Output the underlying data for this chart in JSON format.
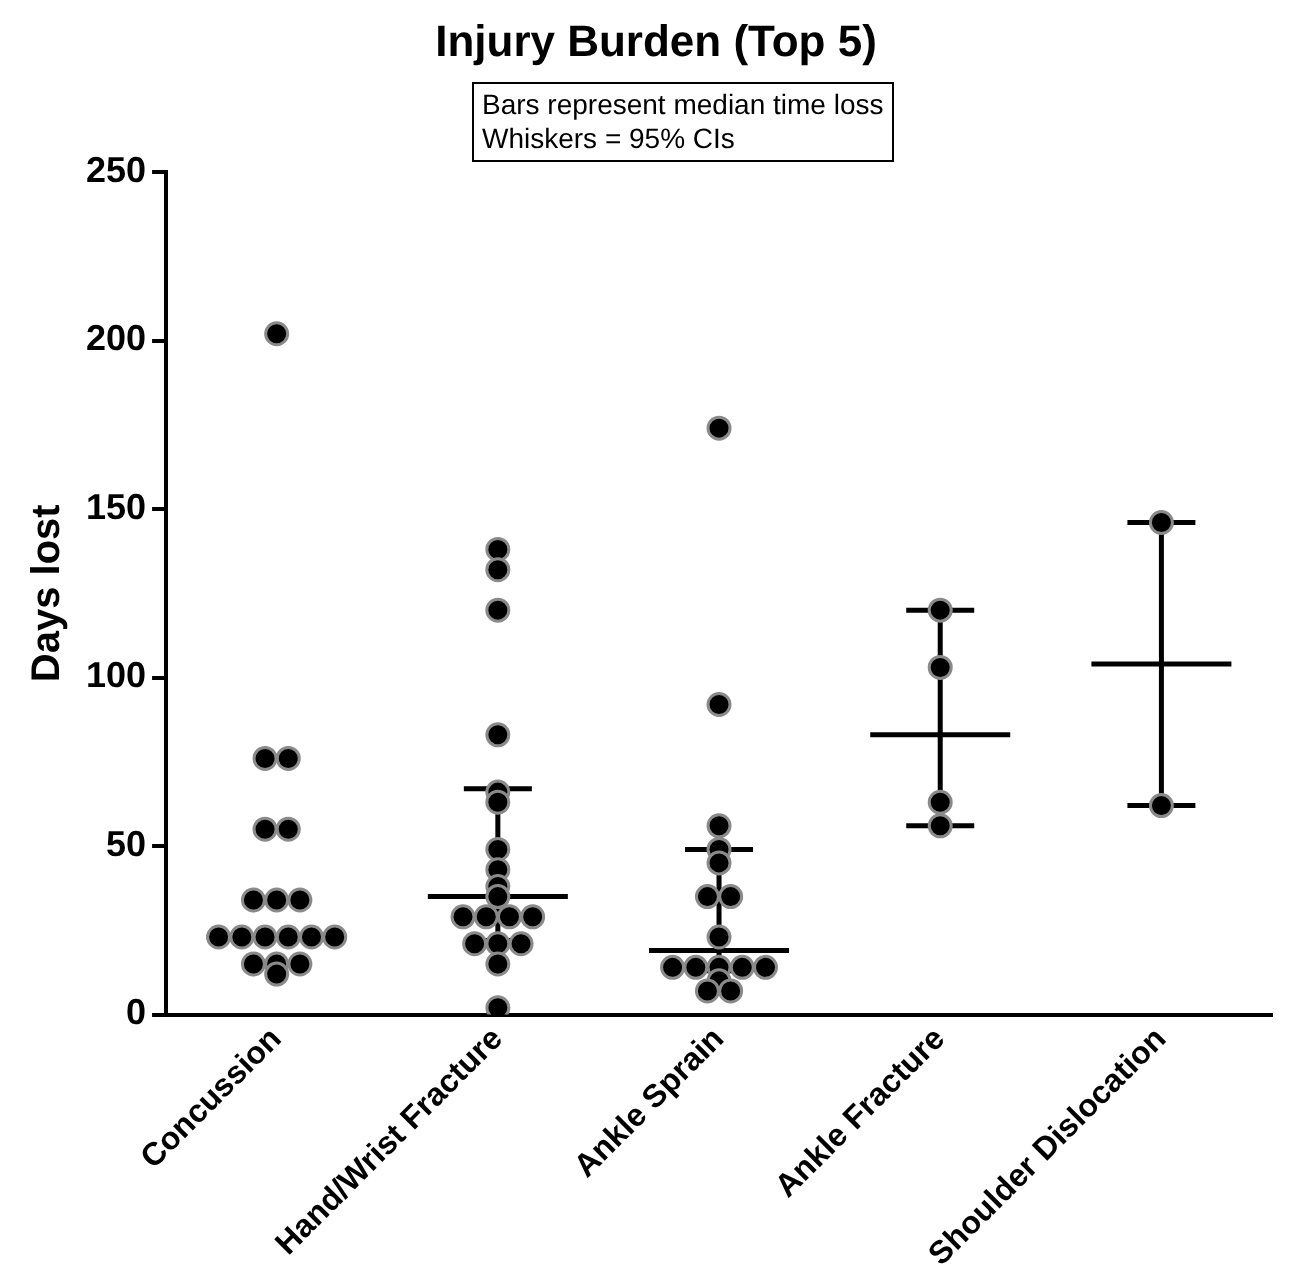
{
  "chart_data": {
    "type": "scatter",
    "title": "Injury Burden (Top 5)",
    "ylabel": "Days lost",
    "annotations": [
      "Bars represent median time loss",
      "Whiskers = 95% CIs"
    ],
    "categories": [
      "Concussion",
      "Hand/Wrist Fracture",
      "Ankle Sprain",
      "Ankle Fracture",
      "Shoulder Dislocation"
    ],
    "ylim": [
      0,
      250
    ],
    "yticks": [
      0,
      50,
      100,
      150,
      200,
      250
    ],
    "grid": false,
    "legend": false,
    "series": [
      {
        "type": "scatter",
        "marker": "circle",
        "color": "#000000",
        "x": [
          "Concussion",
          "Concussion",
          "Concussion",
          "Concussion",
          "Concussion",
          "Concussion",
          "Concussion",
          "Concussion",
          "Concussion",
          "Concussion",
          "Concussion",
          "Concussion",
          "Concussion",
          "Concussion",
          "Concussion",
          "Concussion",
          "Concussion",
          "Concussion",
          "Hand/Wrist Fracture",
          "Hand/Wrist Fracture",
          "Hand/Wrist Fracture",
          "Hand/Wrist Fracture",
          "Hand/Wrist Fracture",
          "Hand/Wrist Fracture",
          "Hand/Wrist Fracture",
          "Hand/Wrist Fracture",
          "Hand/Wrist Fracture",
          "Hand/Wrist Fracture",
          "Hand/Wrist Fracture",
          "Hand/Wrist Fracture",
          "Hand/Wrist Fracture",
          "Hand/Wrist Fracture",
          "Hand/Wrist Fracture",
          "Hand/Wrist Fracture",
          "Hand/Wrist Fracture",
          "Hand/Wrist Fracture",
          "Hand/Wrist Fracture",
          "Ankle Sprain",
          "Ankle Sprain",
          "Ankle Sprain",
          "Ankle Sprain",
          "Ankle Sprain",
          "Ankle Sprain",
          "Ankle Sprain",
          "Ankle Sprain",
          "Ankle Sprain",
          "Ankle Sprain",
          "Ankle Sprain",
          "Ankle Sprain",
          "Ankle Sprain",
          "Ankle Sprain",
          "Ankle Sprain",
          "Ankle Sprain",
          "Ankle Fracture",
          "Ankle Fracture",
          "Ankle Fracture",
          "Ankle Fracture",
          "Shoulder Dislocation",
          "Shoulder Dislocation"
        ],
        "values": [
          202,
          76,
          76,
          55,
          55,
          34,
          34,
          34,
          23,
          23,
          23,
          23,
          23,
          23,
          15,
          15,
          15,
          12,
          138,
          132,
          120,
          83,
          66,
          63,
          49,
          43,
          38,
          35,
          29,
          29,
          29,
          29,
          21,
          21,
          21,
          15,
          2,
          174,
          92,
          56,
          49,
          45,
          35,
          35,
          23,
          14,
          14,
          14,
          14,
          14,
          10,
          7,
          7,
          120,
          103,
          63,
          56,
          146,
          62
        ]
      },
      {
        "type": "box",
        "color": "#000000",
        "boxes": [
          {
            "low": 23,
            "q1": 23,
            "median": 23,
            "q3": 23,
            "high": 23
          },
          {
            "low": 22,
            "q1": 35,
            "median": 35,
            "q3": 35,
            "high": 67
          },
          {
            "low": 13,
            "q1": 19,
            "median": 19,
            "q3": 19,
            "high": 49
          },
          {
            "low": 56,
            "q1": 83,
            "median": 83,
            "q3": 83,
            "high": 120
          },
          {
            "low": 62,
            "q1": 104,
            "median": 104,
            "q3": 104,
            "high": 146
          }
        ]
      }
    ]
  }
}
